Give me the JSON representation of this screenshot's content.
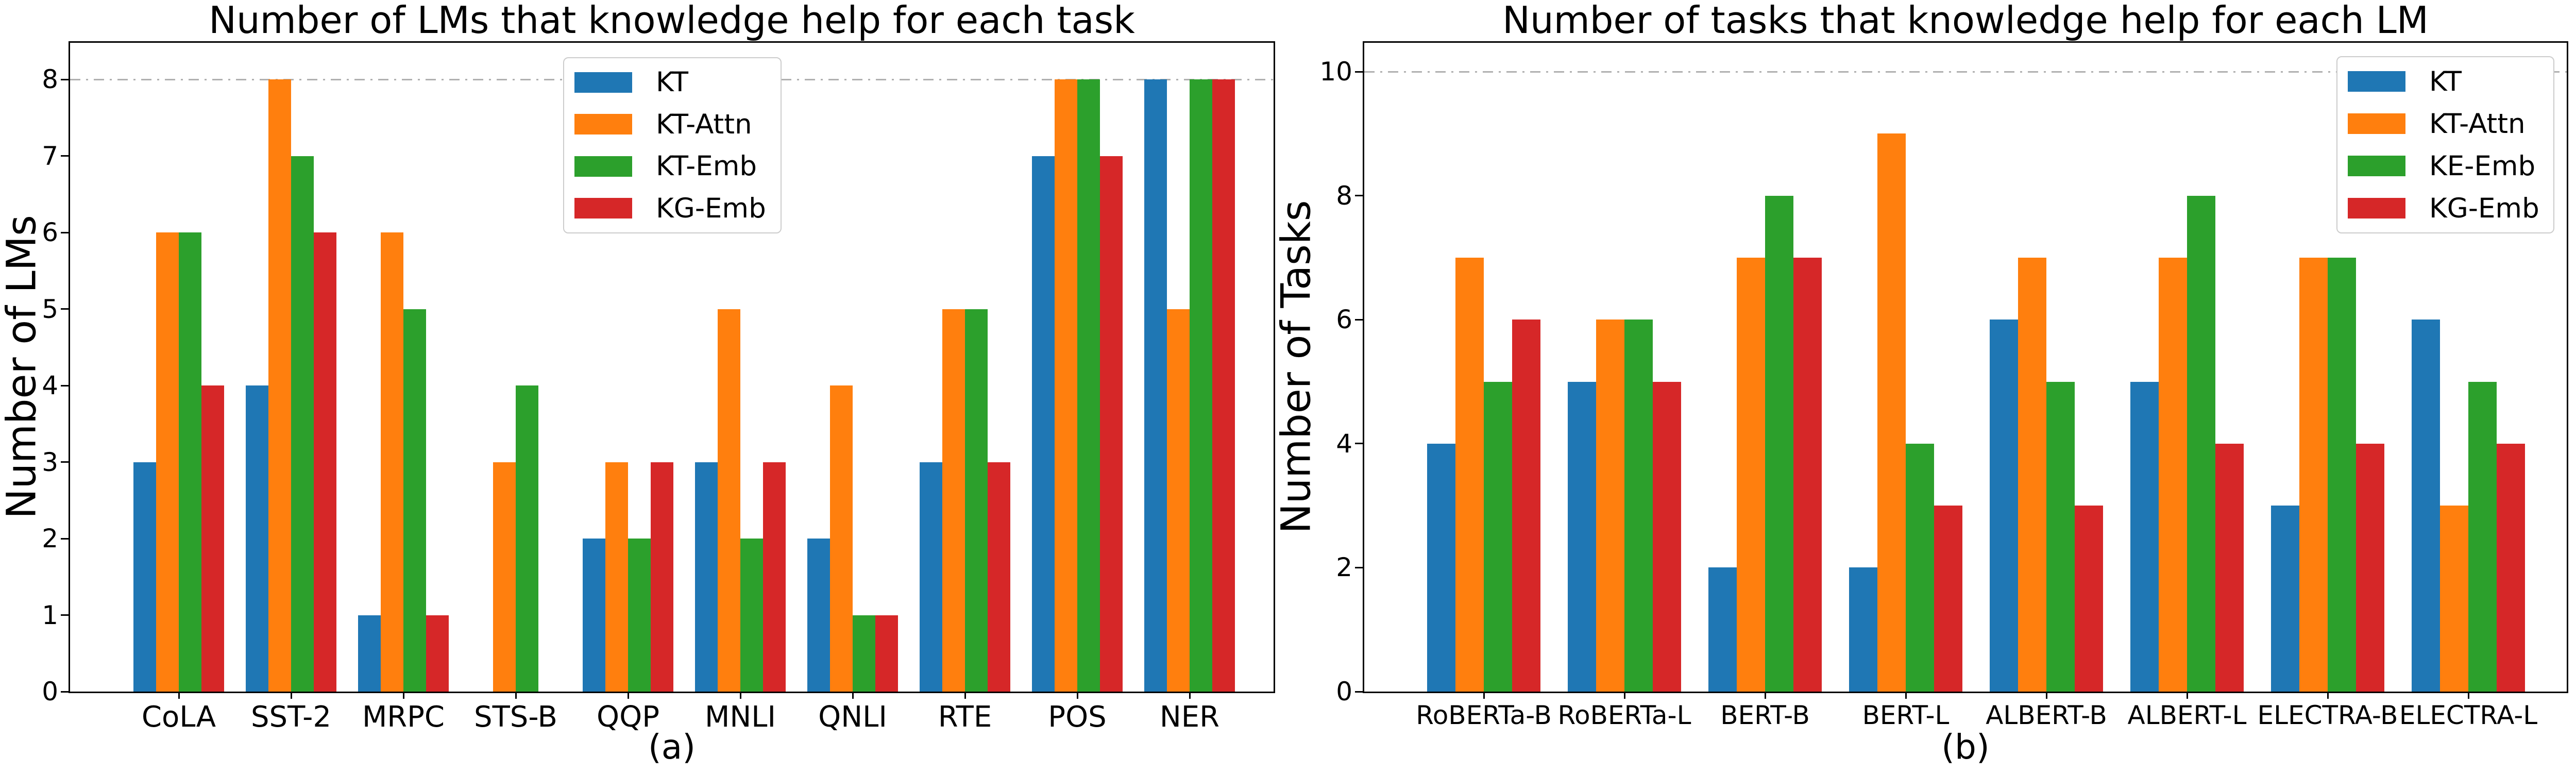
{
  "chart_data": [
    {
      "type": "bar",
      "panel": "a",
      "title": "Number of LMs that knowledge help for each task",
      "ylabel": "Number of LMs",
      "xlabel": "",
      "caption": "(a)",
      "categories": [
        "CoLA",
        "SST-2",
        "MRPC",
        "STS-B",
        "QQP",
        "MNLI",
        "QNLI",
        "RTE",
        "POS",
        "NER"
      ],
      "yticks": [
        0,
        1,
        2,
        3,
        4,
        5,
        6,
        7,
        8
      ],
      "ylim": [
        0,
        8.5
      ],
      "grid": "dash-dot horizontal line at y=8 only",
      "gridline_value": 8,
      "gridline_color": "#b0b0b0",
      "legend_position": "upper center",
      "series": [
        {
          "name": "KT",
          "color": "#1f77b4",
          "values": [
            3,
            4,
            1,
            0,
            2,
            3,
            2,
            3,
            7,
            8
          ]
        },
        {
          "name": "KT-Attn",
          "color": "#ff7f0e",
          "values": [
            6,
            8,
            6,
            3,
            3,
            5,
            4,
            5,
            8,
            5
          ]
        },
        {
          "name": "KT-Emb",
          "color": "#2ca02c",
          "values": [
            6,
            7,
            5,
            4,
            2,
            2,
            1,
            5,
            8,
            8
          ]
        },
        {
          "name": "KG-Emb",
          "color": "#d62728",
          "values": [
            4,
            6,
            1,
            0,
            3,
            3,
            1,
            3,
            7,
            8
          ]
        }
      ]
    },
    {
      "type": "bar",
      "panel": "b",
      "title": "Number of tasks that knowledge help for each LM",
      "ylabel": "Number of Tasks",
      "xlabel": "",
      "caption": "(b)",
      "categories": [
        "RoBERTa-B",
        "RoBERTa-L",
        "BERT-B",
        "BERT-L",
        "ALBERT-B",
        "ALBERT-L",
        "ELECTRA-B",
        "ELECTRA-L"
      ],
      "yticks": [
        0,
        2,
        4,
        6,
        8,
        10
      ],
      "ylim": [
        0,
        10.5
      ],
      "grid": "dash-dot horizontal line at y=10 only",
      "gridline_value": 10,
      "gridline_color": "#b0b0b0",
      "legend_position": "upper right",
      "series": [
        {
          "name": "KT",
          "color": "#1f77b4",
          "values": [
            4,
            5,
            2,
            2,
            6,
            5,
            3,
            6
          ]
        },
        {
          "name": "KT-Attn",
          "color": "#ff7f0e",
          "values": [
            7,
            6,
            7,
            9,
            7,
            7,
            7,
            3
          ]
        },
        {
          "name": "KE-Emb",
          "color": "#2ca02c",
          "values": [
            5,
            6,
            8,
            4,
            5,
            8,
            7,
            5
          ]
        },
        {
          "name": "KG-Emb",
          "color": "#d62728",
          "values": [
            6,
            5,
            7,
            3,
            3,
            4,
            4,
            4
          ]
        }
      ]
    }
  ]
}
